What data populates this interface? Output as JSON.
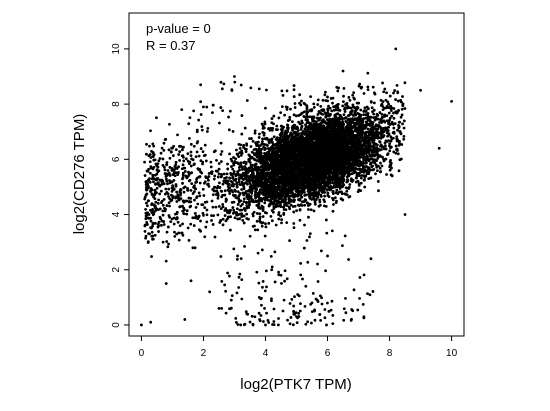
{
  "chart_data": {
    "type": "scatter",
    "title": "",
    "xlabel": "log2(PTK7 TPM)",
    "ylabel": "log2(CD276 TPM)",
    "xlim": [
      -0.4,
      10.4
    ],
    "ylim": [
      -0.4,
      11.3
    ],
    "x_ticks": [
      "0",
      "2",
      "4",
      "6",
      "8",
      "10"
    ],
    "y_ticks": [
      "0",
      "2",
      "4",
      "6",
      "8",
      "10"
    ],
    "grid": false,
    "legend": "none",
    "annotations": [
      "p-value = 0",
      "R = 0.37"
    ],
    "point_color": "#000000",
    "cluster": {
      "center_x": 5.5,
      "center_y": 6.0,
      "sd_x": 1.2,
      "sd_y": 0.75,
      "correlation": 0.37,
      "x_range": [
        0,
        8.5
      ],
      "y_range": [
        0,
        9.3
      ]
    },
    "points": [
      {
        "x": 0.0,
        "y": 0.0
      },
      {
        "x": 0.3,
        "y": 0.1
      },
      {
        "x": 0.2,
        "y": 5.1
      },
      {
        "x": 0.4,
        "y": 5.3
      },
      {
        "x": 0.5,
        "y": 4.2
      },
      {
        "x": 0.7,
        "y": 3.0
      },
      {
        "x": 0.9,
        "y": 5.5
      },
      {
        "x": 0.6,
        "y": 3.9
      },
      {
        "x": 1.1,
        "y": 4.6
      },
      {
        "x": 1.3,
        "y": 7.8
      },
      {
        "x": 1.0,
        "y": 6.4
      },
      {
        "x": 0.8,
        "y": 1.5
      },
      {
        "x": 1.4,
        "y": 0.2
      },
      {
        "x": 1.6,
        "y": 1.6
      },
      {
        "x": 2.2,
        "y": 1.2
      },
      {
        "x": 2.5,
        "y": 0.6
      },
      {
        "x": 3.0,
        "y": 9.0
      },
      {
        "x": 3.2,
        "y": 0.0
      },
      {
        "x": 3.4,
        "y": 0.4
      },
      {
        "x": 3.6,
        "y": 0.0
      },
      {
        "x": 4.0,
        "y": 0.0
      },
      {
        "x": 4.5,
        "y": 1.8
      },
      {
        "x": 5.0,
        "y": 0.3
      },
      {
        "x": 5.5,
        "y": 0.8
      },
      {
        "x": 6.0,
        "y": 2.5
      },
      {
        "x": 6.5,
        "y": 9.2
      },
      {
        "x": 7.4,
        "y": 2.4
      },
      {
        "x": 8.2,
        "y": 10.0
      },
      {
        "x": 8.5,
        "y": 4.0
      },
      {
        "x": 9.0,
        "y": 8.5
      },
      {
        "x": 9.6,
        "y": 6.4
      },
      {
        "x": 10.0,
        "y": 8.1
      },
      {
        "x": 2.8,
        "y": 3.9
      },
      {
        "x": 3.1,
        "y": 2.5
      },
      {
        "x": 3.8,
        "y": 1.0
      },
      {
        "x": 4.2,
        "y": 2.0
      },
      {
        "x": 4.6,
        "y": 0.9
      },
      {
        "x": 5.3,
        "y": 1.4
      },
      {
        "x": 2.0,
        "y": 7.9
      },
      {
        "x": 1.8,
        "y": 7.0
      }
    ]
  }
}
